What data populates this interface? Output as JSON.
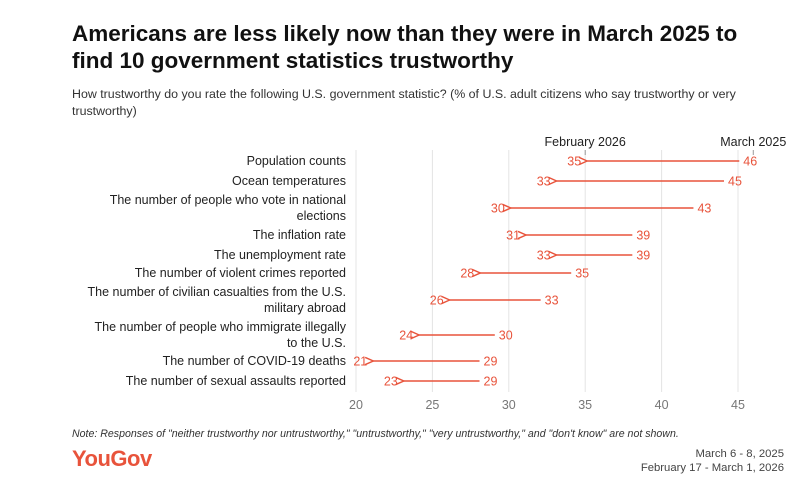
{
  "header": {
    "title": "Americans are less likely now than they were in March 2025 to find 10 government statistics trustworthy",
    "subtitle": "How trustworthy do you rate the following U.S. government statistic? (% of U.S. adult citizens who say trustworthy or very trustworthy)"
  },
  "chart_data": {
    "type": "dumbbell-arrow",
    "title": "Americans are less likely now than they were in March 2025 to find 10 government statistics trustworthy",
    "series_labels": {
      "start": "March 2025",
      "end": "February 2026"
    },
    "categories": [
      [
        "Population counts"
      ],
      [
        "Ocean temperatures"
      ],
      [
        "The number of people who vote in national",
        "elections"
      ],
      [
        "The inflation rate"
      ],
      [
        "The unemployment rate"
      ],
      [
        "The number of violent crimes reported"
      ],
      [
        "The number of civilian casualties from the U.S.",
        "military abroad"
      ],
      [
        "The number of people who immigrate illegally",
        "to the U.S."
      ],
      [
        "The number of COVID-19 deaths"
      ],
      [
        "The number of sexual assaults reported"
      ]
    ],
    "series": [
      {
        "name": "March 2025",
        "values": [
          46,
          45,
          43,
          39,
          39,
          35,
          33,
          30,
          29,
          29
        ]
      },
      {
        "name": "February 2026",
        "values": [
          35,
          33,
          30,
          31,
          33,
          28,
          26,
          24,
          21,
          23
        ]
      }
    ],
    "xlim": [
      20,
      47
    ],
    "xticks": [
      20,
      25,
      30,
      35,
      40,
      45
    ],
    "xlabel": "",
    "ylabel": "",
    "grid": true
  },
  "footer": {
    "note": "Note: Responses of \"neither trustworthy nor untrustworthy,\" \"untrustworthy,\" \"very untrustworthy,\" and \"don't know\" are not shown.",
    "brand": "YouGov",
    "dates": [
      "March 6 - 8, 2025",
      "February 17 - March 1, 2026"
    ]
  },
  "colors": {
    "arrow": "#e8533b",
    "grid": "#e4e4e4",
    "text": "#222222",
    "tick": "#777777"
  }
}
